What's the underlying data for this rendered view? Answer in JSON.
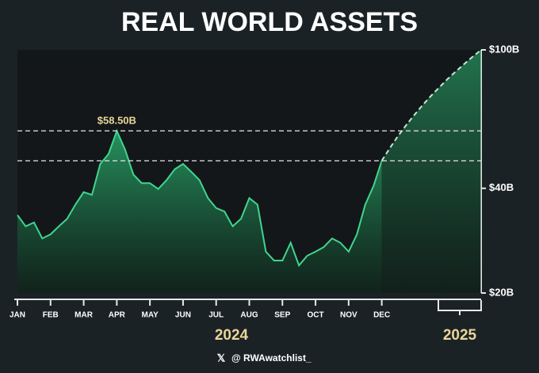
{
  "chart_data": {
    "type": "line",
    "title": "REAL WORLD ASSETS",
    "categories": [
      "JAN",
      null,
      null,
      null,
      "FEB",
      null,
      null,
      null,
      "MAR",
      null,
      null,
      null,
      "APR",
      null,
      null,
      null,
      "MAY",
      null,
      null,
      null,
      "JUN",
      null,
      null,
      null,
      "JUL",
      null,
      null,
      null,
      "AUG",
      null,
      null,
      null,
      "SEP",
      null,
      null,
      null,
      "OCT",
      null,
      null,
      null,
      "NOV",
      null,
      null,
      null,
      "DEC",
      null,
      null,
      null,
      null,
      null,
      null,
      null,
      null,
      null,
      null,
      null,
      null
    ],
    "year_labels": [
      "2024",
      "2025"
    ],
    "series": [
      {
        "color": "#3fd68f",
        "style": "solid",
        "values": [
          33.5,
          31.1,
          31.9,
          28.7,
          29.5,
          31.1,
          32.7,
          35.9,
          39,
          38.3,
          47,
          50.2,
          58.5,
          51.7,
          43.8,
          41.4,
          41.4,
          39.8,
          42.2,
          45.4,
          47,
          44.6,
          42.2,
          37.5,
          35.1,
          34.3,
          31.1,
          32.7,
          37.5,
          35.9,
          26.3,
          24.8,
          24.8,
          27.9,
          24,
          25.6,
          26.3,
          27.1,
          28.7,
          27.9,
          26.3,
          29.5,
          35.9,
          40.6,
          48,
          null,
          null,
          null,
          null,
          null,
          null,
          null,
          null,
          null,
          null,
          null,
          null
        ]
      },
      {
        "color": "#bfe9d2",
        "style": "dashed",
        "values": [
          null,
          null,
          null,
          null,
          null,
          null,
          null,
          null,
          null,
          null,
          null,
          null,
          null,
          null,
          null,
          null,
          null,
          null,
          null,
          null,
          null,
          null,
          null,
          null,
          null,
          null,
          null,
          null,
          null,
          null,
          null,
          null,
          null,
          null,
          null,
          null,
          null,
          null,
          null,
          null,
          null,
          null,
          null,
          null,
          48,
          52.3,
          56.7,
          61,
          65.3,
          69.7,
          74,
          78.3,
          82.7,
          87,
          91.3,
          95.7,
          100
        ]
      }
    ],
    "reference_lines": [
      {
        "value": 58.5,
        "label": "$58.50B"
      },
      {
        "value": 48
      }
    ],
    "ylim": [
      20,
      100
    ],
    "log_scale": true,
    "yticks": [
      {
        "value": 100,
        "label": "$100B"
      },
      {
        "value": 40,
        "label": "$40B"
      },
      {
        "value": 20,
        "label": "$20B"
      }
    ],
    "footer": "@ RWAwatchlist_"
  }
}
